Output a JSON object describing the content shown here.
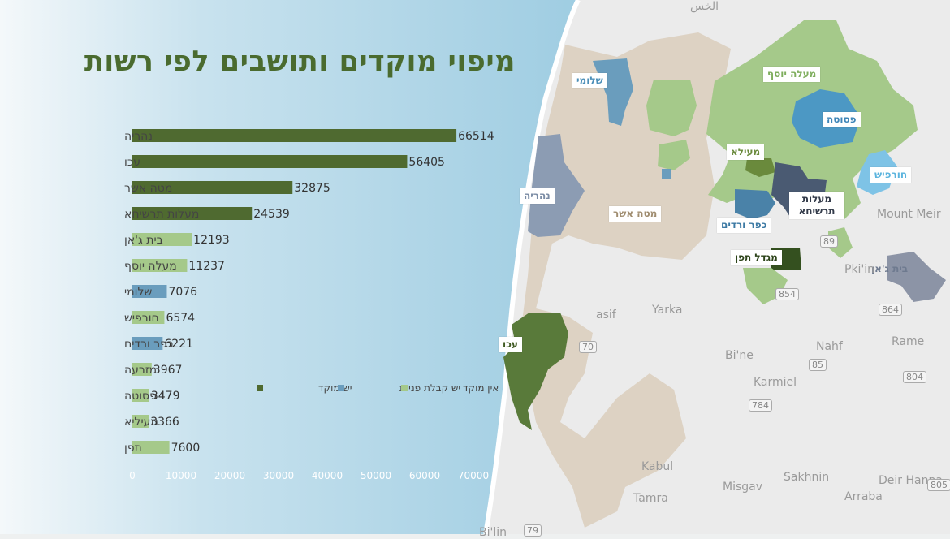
{
  "title": "מיפוי מוקדים ותושבים לפי רשות",
  "colors": {
    "has_hub": "#4f6a30",
    "service": "#6a9dbd",
    "no_hub": "#a5c98a",
    "sea": "#a3cfe3",
    "land": "#ddd2c3"
  },
  "chart_data": {
    "type": "bar",
    "orientation": "horizontal",
    "categories": [
      "נהריה",
      "עכו",
      "מטה אשר",
      "מעלות תרשיחא",
      "בית ג'אן",
      "מעלה יוסף",
      "שלומי",
      "חורפיש",
      "כפר ורדים",
      "מזרעה",
      "פסוטה",
      "מעיליא",
      "תפן"
    ],
    "values": [
      66514,
      56405,
      32875,
      24539,
      12193,
      11237,
      7076,
      6574,
      6221,
      3967,
      3479,
      3366,
      7600
    ],
    "value_labels": [
      "66514",
      "56405",
      "32875",
      "24539",
      "12193",
      "11237",
      "7076",
      "6574",
      "6221",
      "3967",
      "3479",
      "3366",
      "7600"
    ],
    "category_group": [
      "has_hub",
      "has_hub",
      "has_hub",
      "has_hub",
      "no_hub",
      "no_hub",
      "service",
      "no_hub",
      "service",
      "no_hub",
      "no_hub",
      "no_hub",
      "no_hub"
    ],
    "xlim": [
      0,
      70000
    ],
    "xticks": [
      "0",
      "10000",
      "20000",
      "30000",
      "40000",
      "50000",
      "60000",
      "70000"
    ],
    "grid": false,
    "legend": [
      {
        "key": "has_hub",
        "label": "יש מוקד"
      },
      {
        "key": "service",
        "label": "יש קבלת פניות"
      },
      {
        "key": "no_hub",
        "label": "אין מוקד"
      }
    ],
    "legend_position": "lower-right"
  },
  "map": {
    "labels": {
      "shlomi": "שלומי",
      "maale_yosef": "מעלה יוסף",
      "fassuta": "פסוטה",
      "nahariya": "נהריה",
      "mateh_asher": "מטה אשר",
      "mieliya": "מעילא",
      "hurfeish": "חורפיש",
      "maalot": "מעלות תרשיחא",
      "kfar_vradim": "כפר ורדים",
      "migdal_tefen": "מגדל תפן",
      "beit_jann": "בית ג'אן",
      "akko": "עכו"
    },
    "towns": [
      "Yarka",
      "Bi'ne",
      "Nahf",
      "Karmiel",
      "Rame",
      "Kabul",
      "Misgav",
      "Sakhnin",
      "Tamra",
      "Arraba",
      "Deir Hanna",
      "Mount Meir",
      "Pki'in",
      "asif",
      "Bi'lin",
      "الخس"
    ],
    "roads": [
      "70",
      "85",
      "784",
      "804",
      "805",
      "854",
      "864",
      "89",
      "79"
    ]
  }
}
